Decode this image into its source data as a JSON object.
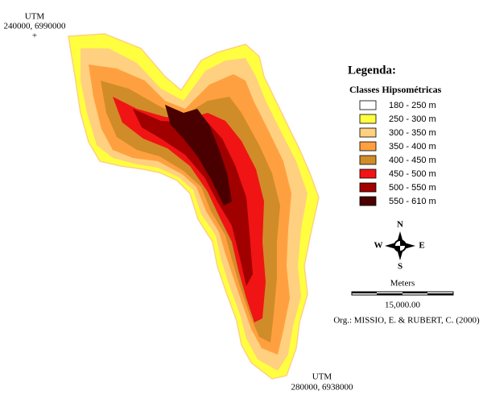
{
  "corner_top": {
    "title": "UTM",
    "coords": "240000, 6990000",
    "marker": "+"
  },
  "corner_bottom": {
    "title": "UTM",
    "coords": "280000, 6938000"
  },
  "legend": {
    "title": "Legenda:",
    "subtitle": "Classes Hipsométricas",
    "classes": [
      {
        "label": "180 - 250 m",
        "color": "#ffffff"
      },
      {
        "label": "250 - 300 m",
        "color": "#ffff40"
      },
      {
        "label": "300 - 350 m",
        "color": "#ffd080"
      },
      {
        "label": "350 - 400 m",
        "color": "#ffa040"
      },
      {
        "label": "400 - 450 m",
        "color": "#d08c28"
      },
      {
        "label": "450 - 500 m",
        "color": "#f01414"
      },
      {
        "label": "500 - 550 m",
        "color": "#a00000"
      },
      {
        "label": "550 - 610 m",
        "color": "#4a0000"
      }
    ]
  },
  "compass": {
    "n": "N",
    "s": "S",
    "e": "E",
    "w": "W"
  },
  "scale": {
    "unit": "Meters",
    "distance": "15,000.00"
  },
  "credit": "Org.: MISSIO, E. & RUBERT, C. (2000)"
}
